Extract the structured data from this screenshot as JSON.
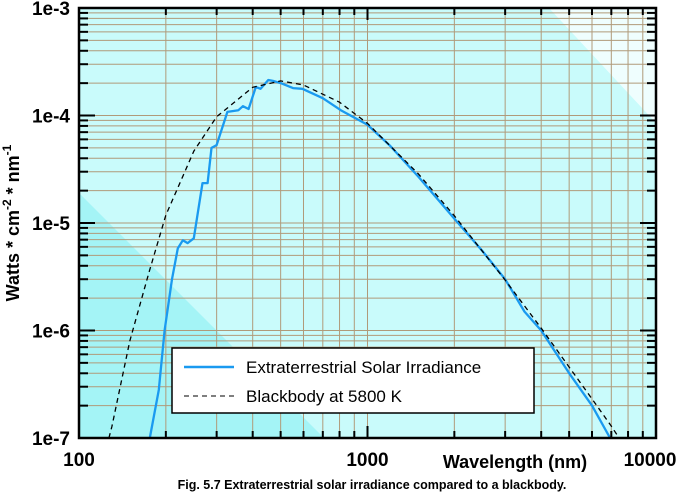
{
  "chart_data": {
    "type": "line",
    "title": "",
    "caption": "Fig. 5.7  Extraterrestrial solar irradiance compared to a blackbody.",
    "xlabel": "Wavelength (nm)",
    "ylabel": {
      "base": "Watts * cm",
      "sup1": "-2",
      "mid": " * nm",
      "sup2": "-1"
    },
    "x_scale": "log",
    "y_scale": "log",
    "xlim": [
      100,
      10000
    ],
    "ylim": [
      1e-07,
      0.001
    ],
    "x_ticks": [
      {
        "value": 100,
        "label": "100"
      },
      {
        "value": 1000,
        "label": "1000"
      },
      {
        "value": 10000,
        "label": "10000"
      }
    ],
    "y_ticks": [
      {
        "value": 0.001,
        "label": "1e-3"
      },
      {
        "value": 0.0001,
        "label": "1e-4"
      },
      {
        "value": 1e-05,
        "label": "1e-5"
      },
      {
        "value": 1e-06,
        "label": "1e-6"
      },
      {
        "value": 1e-07,
        "label": "1e-7"
      }
    ],
    "grid": true,
    "legend_position": "bottom-center",
    "colors": {
      "solar": "#1a9af0",
      "blackbody": "#000000",
      "grid": "#b09a7a",
      "background": "#c9fbfb",
      "background_dark": "#a4f4f6",
      "background_light": "#effefe"
    },
    "series": [
      {
        "name": "Extraterrestrial Solar Irradiance",
        "style": "solid",
        "points": [
          [
            176,
            1e-07
          ],
          [
            189,
            2.8e-07
          ],
          [
            198,
            1e-06
          ],
          [
            210,
            3e-06
          ],
          [
            220,
            5.8e-06
          ],
          [
            229,
            6.9e-06
          ],
          [
            238,
            6.5e-06
          ],
          [
            250,
            7.2e-06
          ],
          [
            268,
            2.35e-05
          ],
          [
            279,
            2.35e-05
          ],
          [
            288,
            5e-05
          ],
          [
            300,
            5.3e-05
          ],
          [
            310,
            7e-05
          ],
          [
            327,
            0.000108
          ],
          [
            357,
            0.000112
          ],
          [
            370,
            0.000122
          ],
          [
            387,
            0.000115
          ],
          [
            410,
            0.000184
          ],
          [
            426,
            0.000177
          ],
          [
            453,
            0.000214
          ],
          [
            470,
            0.00021
          ],
          [
            500,
            0.0002
          ],
          [
            552,
            0.00018
          ],
          [
            595,
            0.000177
          ],
          [
            700,
            0.000145
          ],
          [
            808,
            0.000112
          ],
          [
            1000,
            8.2e-05
          ],
          [
            1200,
            5.2e-05
          ],
          [
            1500,
            2.7e-05
          ],
          [
            2000,
            1.1e-05
          ],
          [
            2500,
            5.5e-06
          ],
          [
            3000,
            3e-06
          ],
          [
            3500,
            1.5e-06
          ],
          [
            4000,
            1e-06
          ],
          [
            5000,
            4e-07
          ],
          [
            6000,
            2e-07
          ],
          [
            6930,
            1e-07
          ]
        ]
      },
      {
        "name": "Blackbody at 5800 K",
        "style": "dashed",
        "points": [
          [
            127,
            1e-07
          ],
          [
            130,
            1.28e-07
          ],
          [
            150,
            7.98e-07
          ],
          [
            175,
            3.5e-06
          ],
          [
            200,
            1.18e-05
          ],
          [
            250,
            4.65e-05
          ],
          [
            300,
            9.72e-05
          ],
          [
            400,
            0.000183
          ],
          [
            500,
            0.00021
          ],
          [
            600,
            0.000192
          ],
          [
            800,
            0.000133
          ],
          [
            1000,
            8.44e-05
          ],
          [
            1500,
            2.87e-05
          ],
          [
            2000,
            1.17e-05
          ],
          [
            3000,
            2.95e-06
          ],
          [
            4000,
            1.05e-06
          ],
          [
            6000,
            2.31e-07
          ],
          [
            7000,
            1.29e-07
          ],
          [
            7450,
            1e-07
          ]
        ]
      }
    ]
  }
}
